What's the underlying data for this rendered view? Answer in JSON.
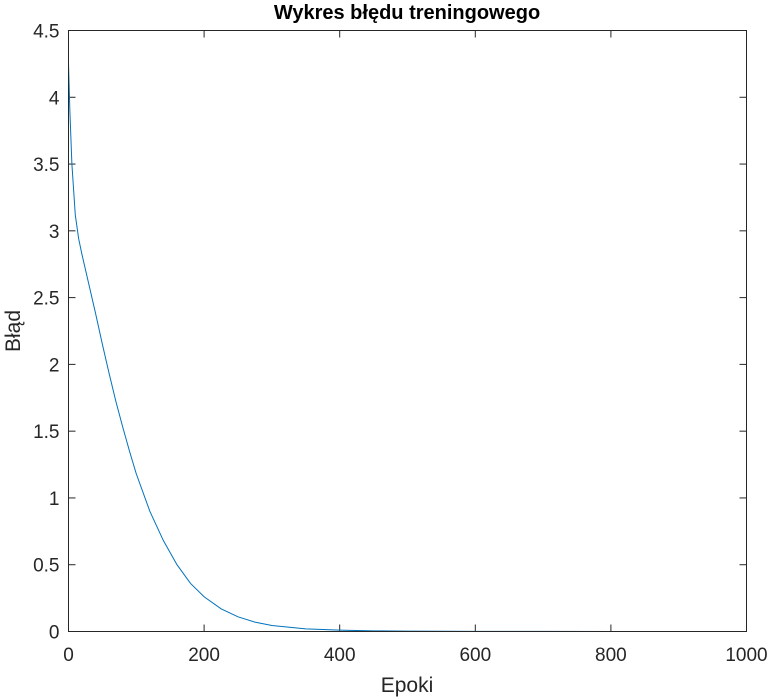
{
  "chart_data": {
    "type": "line",
    "title": "Wykres błędu treningowego",
    "xlabel": "Epoki",
    "ylabel": "Błąd",
    "xlim": [
      0,
      1000
    ],
    "ylim": [
      0,
      4.5
    ],
    "xticks": [
      0,
      200,
      400,
      600,
      800,
      1000
    ],
    "yticks": [
      0,
      0.5,
      1,
      1.5,
      2,
      2.5,
      3,
      3.5,
      4,
      4.5
    ],
    "xtick_labels": [
      "0",
      "200",
      "400",
      "600",
      "800",
      "1000"
    ],
    "ytick_labels": [
      "0",
      "0.5",
      "1",
      "1.5",
      "2",
      "2.5",
      "3",
      "3.5",
      "4",
      "4.5"
    ],
    "grid": false,
    "series": [
      {
        "color": "#0072BD",
        "x": [
          0,
          2,
          5,
          10,
          15,
          20,
          30,
          40,
          50,
          60,
          70,
          80,
          90,
          100,
          120,
          140,
          160,
          180,
          200,
          225,
          250,
          275,
          300,
          350,
          400,
          450,
          500,
          550,
          600,
          700,
          800,
          900,
          1000
        ],
        "y": [
          4.25,
          3.9,
          3.5,
          3.12,
          2.94,
          2.82,
          2.6,
          2.38,
          2.15,
          1.93,
          1.72,
          1.53,
          1.35,
          1.18,
          0.9,
          0.68,
          0.5,
          0.36,
          0.26,
          0.17,
          0.11,
          0.07,
          0.045,
          0.02,
          0.01,
          0.005,
          0.003,
          0.002,
          0.001,
          0.0005,
          0.0003,
          0.0002,
          0.0001
        ]
      }
    ]
  }
}
